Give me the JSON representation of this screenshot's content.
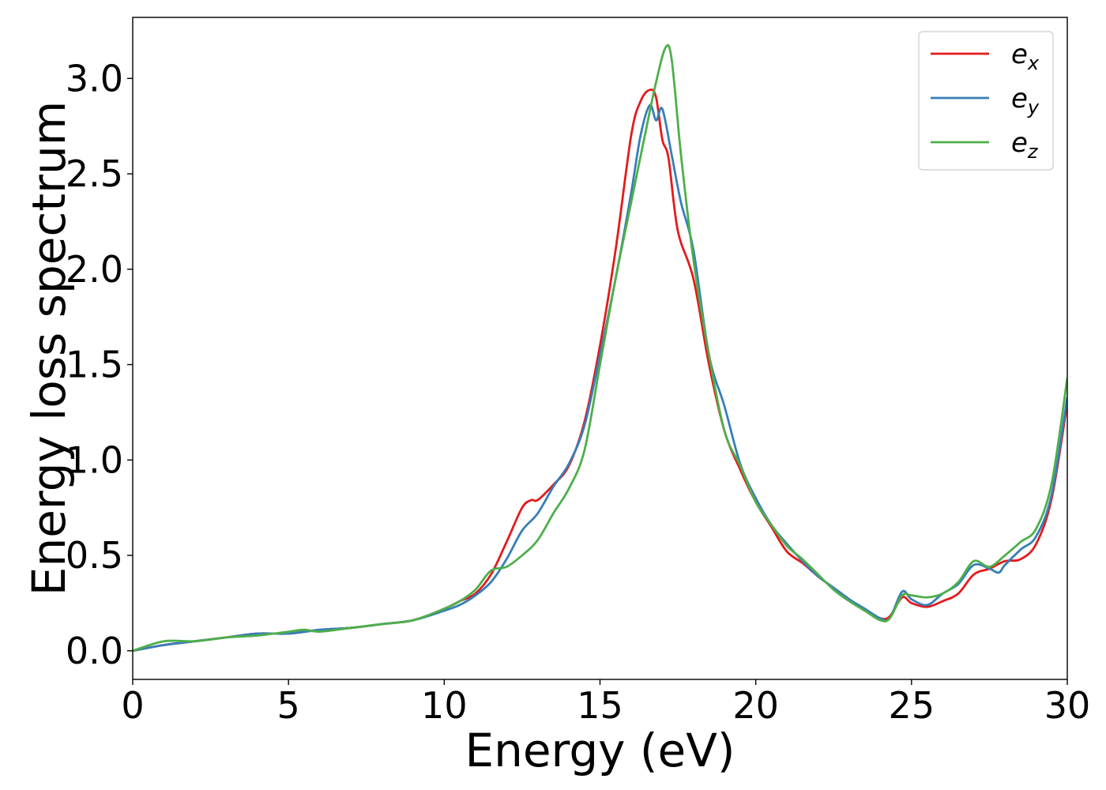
{
  "chart_data": {
    "type": "line",
    "title": "",
    "xlabel": "Energy (eV)",
    "ylabel": "Energy loss spectrum",
    "xlim": [
      0,
      30
    ],
    "ylim": [
      -0.15,
      3.32
    ],
    "xticks": [
      0,
      5,
      10,
      15,
      20,
      25,
      30
    ],
    "xtick_labels": [
      "0",
      "5",
      "10",
      "15",
      "20",
      "25",
      "30"
    ],
    "yticks": [
      0.0,
      0.5,
      1.0,
      1.5,
      2.0,
      2.5,
      3.0
    ],
    "ytick_labels": [
      "0.0",
      "0.5",
      "1.0",
      "1.5",
      "2.0",
      "2.5",
      "3.0"
    ],
    "grid": false,
    "legend_position": "top-right",
    "series": [
      {
        "name": "e",
        "subscript": "x",
        "color": "#e41a1c",
        "points": [
          [
            0,
            0.0
          ],
          [
            1,
            0.03
          ],
          [
            2,
            0.05
          ],
          [
            3,
            0.07
          ],
          [
            4,
            0.09
          ],
          [
            5,
            0.09
          ],
          [
            6,
            0.11
          ],
          [
            7,
            0.12
          ],
          [
            8,
            0.14
          ],
          [
            9,
            0.16
          ],
          [
            10,
            0.22
          ],
          [
            10.5,
            0.26
          ],
          [
            11,
            0.3
          ],
          [
            11.5,
            0.4
          ],
          [
            12,
            0.57
          ],
          [
            12.5,
            0.75
          ],
          [
            12.8,
            0.79
          ],
          [
            13,
            0.79
          ],
          [
            13.5,
            0.87
          ],
          [
            14,
            0.97
          ],
          [
            14.5,
            1.2
          ],
          [
            15,
            1.6
          ],
          [
            15.5,
            2.1
          ],
          [
            16,
            2.7
          ],
          [
            16.3,
            2.88
          ],
          [
            16.6,
            2.94
          ],
          [
            16.8,
            2.9
          ],
          [
            17,
            2.68
          ],
          [
            17.2,
            2.58
          ],
          [
            17.5,
            2.2
          ],
          [
            18,
            1.95
          ],
          [
            18.5,
            1.5
          ],
          [
            19,
            1.15
          ],
          [
            19.5,
            0.95
          ],
          [
            20,
            0.78
          ],
          [
            20.5,
            0.65
          ],
          [
            21,
            0.52
          ],
          [
            21.5,
            0.46
          ],
          [
            22,
            0.39
          ],
          [
            22.5,
            0.33
          ],
          [
            23,
            0.27
          ],
          [
            23.5,
            0.21
          ],
          [
            24,
            0.17
          ],
          [
            24.3,
            0.18
          ],
          [
            24.7,
            0.28
          ],
          [
            25,
            0.25
          ],
          [
            25.5,
            0.23
          ],
          [
            26,
            0.26
          ],
          [
            26.5,
            0.3
          ],
          [
            27,
            0.4
          ],
          [
            27.5,
            0.43
          ],
          [
            28,
            0.47
          ],
          [
            28.5,
            0.48
          ],
          [
            29,
            0.56
          ],
          [
            29.5,
            0.8
          ],
          [
            30,
            1.3
          ]
        ]
      },
      {
        "name": "e",
        "subscript": "y",
        "color": "#377eb8",
        "points": [
          [
            0,
            0.0
          ],
          [
            1,
            0.03
          ],
          [
            2,
            0.05
          ],
          [
            3,
            0.07
          ],
          [
            4,
            0.09
          ],
          [
            5,
            0.09
          ],
          [
            6,
            0.11
          ],
          [
            7,
            0.12
          ],
          [
            8,
            0.14
          ],
          [
            9,
            0.16
          ],
          [
            10,
            0.21
          ],
          [
            10.5,
            0.24
          ],
          [
            11,
            0.29
          ],
          [
            11.5,
            0.36
          ],
          [
            12,
            0.48
          ],
          [
            12.5,
            0.63
          ],
          [
            13,
            0.72
          ],
          [
            13.5,
            0.86
          ],
          [
            14,
            0.98
          ],
          [
            14.5,
            1.18
          ],
          [
            15,
            1.55
          ],
          [
            15.5,
            1.95
          ],
          [
            16,
            2.4
          ],
          [
            16.3,
            2.7
          ],
          [
            16.6,
            2.86
          ],
          [
            16.8,
            2.78
          ],
          [
            17,
            2.84
          ],
          [
            17.3,
            2.6
          ],
          [
            17.6,
            2.35
          ],
          [
            18,
            2.1
          ],
          [
            18.5,
            1.55
          ],
          [
            19,
            1.28
          ],
          [
            19.5,
            0.98
          ],
          [
            20,
            0.8
          ],
          [
            20.5,
            0.66
          ],
          [
            21,
            0.56
          ],
          [
            21.5,
            0.47
          ],
          [
            22,
            0.39
          ],
          [
            22.5,
            0.33
          ],
          [
            23,
            0.27
          ],
          [
            23.5,
            0.22
          ],
          [
            24,
            0.17
          ],
          [
            24.3,
            0.17
          ],
          [
            24.7,
            0.31
          ],
          [
            25,
            0.27
          ],
          [
            25.5,
            0.24
          ],
          [
            26,
            0.3
          ],
          [
            26.5,
            0.35
          ],
          [
            27,
            0.45
          ],
          [
            27.5,
            0.43
          ],
          [
            27.8,
            0.41
          ],
          [
            28,
            0.45
          ],
          [
            28.5,
            0.53
          ],
          [
            29,
            0.6
          ],
          [
            29.5,
            0.82
          ],
          [
            30,
            1.33
          ]
        ]
      },
      {
        "name": "e",
        "subscript": "z",
        "color": "#4daf4a",
        "points": [
          [
            0,
            0.0
          ],
          [
            1,
            0.05
          ],
          [
            2,
            0.05
          ],
          [
            3,
            0.07
          ],
          [
            4,
            0.08
          ],
          [
            5,
            0.1
          ],
          [
            5.5,
            0.11
          ],
          [
            6,
            0.1
          ],
          [
            7,
            0.12
          ],
          [
            8,
            0.14
          ],
          [
            9,
            0.16
          ],
          [
            10,
            0.22
          ],
          [
            10.5,
            0.26
          ],
          [
            11,
            0.32
          ],
          [
            11.5,
            0.42
          ],
          [
            12,
            0.44
          ],
          [
            12.5,
            0.5
          ],
          [
            13,
            0.58
          ],
          [
            13.5,
            0.72
          ],
          [
            14,
            0.85
          ],
          [
            14.5,
            1.05
          ],
          [
            15,
            1.5
          ],
          [
            15.5,
            1.95
          ],
          [
            16,
            2.35
          ],
          [
            16.5,
            2.75
          ],
          [
            16.8,
            2.98
          ],
          [
            17.1,
            3.16
          ],
          [
            17.3,
            3.1
          ],
          [
            17.6,
            2.6
          ],
          [
            18,
            2.05
          ],
          [
            18.5,
            1.55
          ],
          [
            19,
            1.15
          ],
          [
            19.5,
            0.97
          ],
          [
            20,
            0.78
          ],
          [
            20.5,
            0.66
          ],
          [
            21,
            0.55
          ],
          [
            21.5,
            0.48
          ],
          [
            22,
            0.4
          ],
          [
            22.5,
            0.32
          ],
          [
            23,
            0.26
          ],
          [
            23.5,
            0.21
          ],
          [
            24,
            0.16
          ],
          [
            24.3,
            0.17
          ],
          [
            24.7,
            0.29
          ],
          [
            25,
            0.29
          ],
          [
            25.5,
            0.28
          ],
          [
            26,
            0.3
          ],
          [
            26.5,
            0.36
          ],
          [
            27,
            0.47
          ],
          [
            27.5,
            0.44
          ],
          [
            28,
            0.5
          ],
          [
            28.5,
            0.57
          ],
          [
            29,
            0.64
          ],
          [
            29.5,
            0.88
          ],
          [
            30,
            1.43
          ]
        ]
      }
    ]
  }
}
